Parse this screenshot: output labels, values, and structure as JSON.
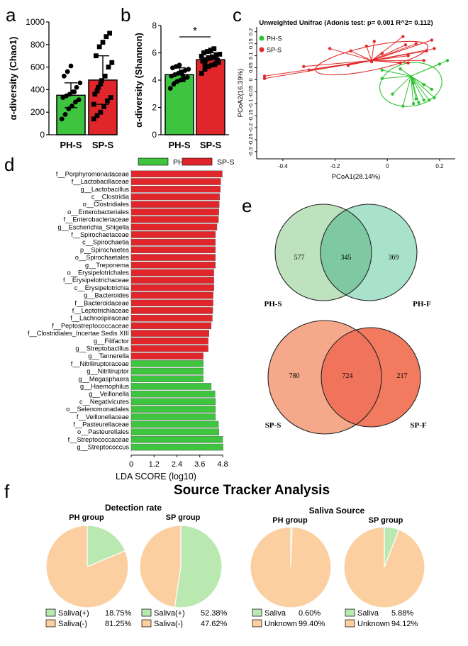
{
  "panels": {
    "a": "a",
    "b": "b",
    "c": "c",
    "d": "d",
    "e": "e",
    "f": "f"
  },
  "chart_data": [
    {
      "id": "a",
      "type": "bar",
      "ylabel": "α-diversity (Chao1)",
      "ylim": [
        0,
        1000
      ],
      "yticks": [
        0,
        200,
        400,
        600,
        800,
        1000
      ],
      "categories": [
        "PH-S",
        "SP-S"
      ],
      "values": [
        350,
        485
      ],
      "errors": [
        110,
        215
      ],
      "colors": [
        "#3ec43e",
        "#e0262a"
      ],
      "points": [
        [
          140,
          180,
          230,
          255,
          290,
          310,
          330,
          345,
          360,
          380,
          420,
          460,
          520,
          560,
          610,
          380
        ],
        [
          140,
          170,
          200,
          250,
          300,
          330,
          360,
          420,
          480,
          520,
          600,
          640,
          700,
          780,
          820,
          870,
          900,
          270,
          390,
          450
        ]
      ]
    },
    {
      "id": "b",
      "type": "bar",
      "ylabel": "α-diversity (Shannon)",
      "ylim": [
        0,
        8
      ],
      "yticks": [
        0,
        2,
        4,
        6,
        8
      ],
      "categories": [
        "PH-S",
        "SP-S"
      ],
      "values": [
        4.4,
        5.5
      ],
      "errors": [
        0.5,
        0.5
      ],
      "colors": [
        "#3ec43e",
        "#e0262a"
      ],
      "significance": "*",
      "points": [
        [
          3.4,
          3.7,
          3.9,
          4.0,
          4.1,
          4.2,
          4.3,
          4.4,
          4.5,
          4.6,
          4.7,
          4.8,
          4.9,
          5.0,
          5.1,
          4.35
        ],
        [
          4.5,
          4.8,
          5.0,
          5.1,
          5.2,
          5.3,
          5.4,
          5.5,
          5.6,
          5.7,
          5.8,
          5.9,
          6.0,
          6.1,
          6.2,
          6.3,
          5.45,
          5.75,
          5.15,
          5.65
        ]
      ]
    },
    {
      "id": "c",
      "type": "scatter",
      "title": "Unweighted Unifrac (Adonis test: p= 0.001  R^2= 0.112)",
      "xlabel": "PCoA1(28.14%)",
      "ylabel": "PCoA2(16.39%)",
      "xlim": [
        -0.5,
        0.26
      ],
      "ylim": [
        -0.33,
        0.22
      ],
      "xticks": [
        -0.4,
        -0.2,
        0,
        0.2
      ],
      "yticks": [
        0.2,
        0.15,
        0.1,
        0.05,
        0,
        -0.05,
        -0.1,
        -0.15,
        -0.2,
        -0.25,
        -0.3
      ],
      "series": [
        {
          "name": "PH-S",
          "color": "#2ec22e",
          "centroid": [
            0.09,
            0.015
          ],
          "points": [
            [
              0.2,
              0.065
            ],
            [
              0.23,
              0.08
            ],
            [
              -0.02,
              0.04
            ],
            [
              0.05,
              0.045
            ],
            [
              -0.02,
              0.005
            ],
            [
              0.1,
              -0.015
            ],
            [
              0.14,
              -0.02
            ],
            [
              0.17,
              -0.04
            ],
            [
              0.02,
              -0.06
            ],
            [
              0.11,
              -0.08
            ],
            [
              0.12,
              -0.095
            ],
            [
              0.14,
              -0.085
            ],
            [
              0.16,
              -0.085
            ],
            [
              0.1,
              -0.1
            ],
            [
              0.06,
              -0.11
            ],
            [
              0.18,
              -0.075
            ]
          ],
          "ellipse": {
            "cx": 0.09,
            "cy": -0.02,
            "rx": 0.12,
            "ry": 0.09,
            "angle": -10
          }
        },
        {
          "name": "SP-S",
          "color": "#e22a2a",
          "centroid": [
            -0.06,
            0.08
          ],
          "points": [
            [
              -0.47,
              0.005
            ],
            [
              -0.47,
              0.015
            ],
            [
              -0.32,
              0.055
            ],
            [
              -0.3,
              0.04
            ],
            [
              -0.15,
              0.06
            ],
            [
              -0.06,
              0.075
            ],
            [
              0.05,
              0.07
            ],
            [
              0.14,
              0.08
            ],
            [
              0.08,
              0.1
            ],
            [
              0.15,
              0.12
            ],
            [
              0.07,
              0.145
            ],
            [
              0.17,
              0.165
            ],
            [
              0.18,
              0.13
            ],
            [
              0.06,
              0.18
            ],
            [
              -0.22,
              0.13
            ],
            [
              -0.14,
              0.12
            ],
            [
              -0.08,
              0.14
            ],
            [
              -0.05,
              0.16
            ],
            [
              -0.02,
              0.11
            ],
            [
              0.11,
              0.15
            ],
            [
              0.08,
              0.07
            ]
          ],
          "ellipse": {
            "cx": -0.06,
            "cy": 0.09,
            "rx": 0.22,
            "ry": 0.05,
            "angle": -12
          }
        }
      ],
      "legend": "top-left"
    },
    {
      "id": "d",
      "type": "bar",
      "orientation": "horizontal",
      "xlabel": "LDA SCORE (log10)",
      "xlim": [
        0,
        4.8
      ],
      "xticks": [
        0,
        1.2,
        2.4,
        3.6,
        4.8
      ],
      "legend": [
        "PH-S",
        "SP-S"
      ],
      "colors": {
        "PH-S": "#3ec43e",
        "SP-S": "#e0262a"
      },
      "categories": [
        "f__Porphyromonadaceae",
        "f__Lactobacillaceae",
        "g__Lactobacillus",
        "c__Clostridia",
        "o__Clostridiales",
        "o__Enterobacteriales",
        "f__Enterobacteriaceae",
        "g__Escherichia_Shigella",
        "f__Spirochaetaceae",
        "c__Spirochaetia",
        "p__Spirochaetes",
        "o__Spirochaetales",
        "g__Treponema",
        "o__Erysipelotrichales",
        "f__Erysipelotrichaceae",
        "c__Erysipelotrichia",
        "g__Bacteroides",
        "f__Bacteroidaceae",
        "f__Leptotrichiaceae",
        "f__Lachnospiraceae",
        "f__Peptostreptococcaceae",
        "f__Clostridiales_Incertae Sedis XIII",
        "g__Filifactor",
        "g__Streptobacillus",
        "g__Tannerella",
        "f__Nitriliruptoraceae",
        "g__Nitriliruptor",
        "g__Megasphaera",
        "g__Haemophilus",
        "g__Veillonella",
        "c__Negativicutes",
        "o__Selenomonadales",
        "f__Veillonellaceae",
        "f__Pasteurellaceae",
        "o__Pasteurellales",
        "f__Streptococcaceae",
        "g__Streptococcus"
      ],
      "groups": [
        "SP-S",
        "SP-S",
        "SP-S",
        "SP-S",
        "SP-S",
        "SP-S",
        "SP-S",
        "SP-S",
        "SP-S",
        "SP-S",
        "SP-S",
        "SP-S",
        "SP-S",
        "SP-S",
        "SP-S",
        "SP-S",
        "SP-S",
        "SP-S",
        "SP-S",
        "SP-S",
        "SP-S",
        "SP-S",
        "SP-S",
        "SP-S",
        "SP-S",
        "PH-S",
        "PH-S",
        "PH-S",
        "PH-S",
        "PH-S",
        "PH-S",
        "PH-S",
        "PH-S",
        "PH-S",
        "PH-S",
        "PH-S",
        "PH-S"
      ],
      "values": [
        4.78,
        4.7,
        4.68,
        4.64,
        4.62,
        4.6,
        4.58,
        4.5,
        4.42,
        4.42,
        4.42,
        4.42,
        4.42,
        4.34,
        4.34,
        4.34,
        4.3,
        4.3,
        4.28,
        4.26,
        4.2,
        4.08,
        4.04,
        4.04,
        3.78,
        3.78,
        3.78,
        3.78,
        4.2,
        4.4,
        4.42,
        4.42,
        4.42,
        4.58,
        4.6,
        4.8,
        4.82
      ]
    },
    {
      "id": "e",
      "type": "venn",
      "diagrams": [
        {
          "left_label": "PH-S",
          "right_label": "PH-F",
          "left_only": 577,
          "overlap": 345,
          "right_only": 369,
          "left_color": "#bde2bd",
          "right_color": "#a8e2cb",
          "overlap_color": "#7ec9a2"
        },
        {
          "left_label": "SP-S",
          "right_label": "SP-F",
          "left_only": 780,
          "overlap": 724,
          "right_only": 217,
          "left_color": "#f5a98a",
          "right_color": "#f27a5f",
          "overlap_color": "#f0745c"
        }
      ]
    },
    {
      "id": "f",
      "type": "pie",
      "title": "Source Tracker Analysis",
      "subtitle_left": "Detection rate",
      "subtitle_right": "Saliva Source",
      "colors": {
        "positive": "#b9e8b0",
        "negative": "#fbcfa0"
      },
      "pies": [
        {
          "label": "PH group",
          "slices": [
            {
              "name": "Saliva(+)",
              "value": 18.75,
              "text": "18.75%"
            },
            {
              "name": "Saliva(-)",
              "value": 81.25,
              "text": "81.25%"
            }
          ]
        },
        {
          "label": "SP group",
          "slices": [
            {
              "name": "Saliva(+)",
              "value": 52.38,
              "text": "52.38%"
            },
            {
              "name": "Saliva(-)",
              "value": 47.62,
              "text": "47.62%"
            }
          ]
        },
        {
          "label": "PH group",
          "slices": [
            {
              "name": "Saliva",
              "value": 0.6,
              "text": "0.60%"
            },
            {
              "name": "Unknown",
              "value": 99.4,
              "text": "99.40%"
            }
          ]
        },
        {
          "label": "SP group",
          "slices": [
            {
              "name": "Saliva",
              "value": 5.88,
              "text": "5.88%"
            },
            {
              "name": "Unknown",
              "value": 94.12,
              "text": "94.12%"
            }
          ]
        }
      ]
    }
  ]
}
